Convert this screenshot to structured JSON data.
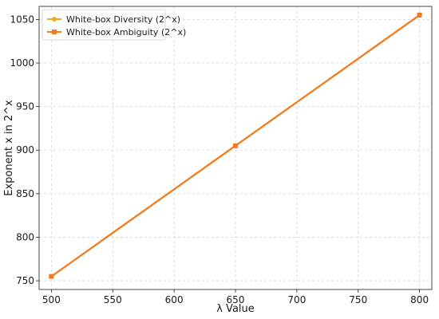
{
  "chart_data": {
    "type": "line",
    "title": "",
    "xlabel": "λ Value",
    "ylabel": "Exponent x in 2^x",
    "x": [
      500,
      650,
      800
    ],
    "xticks": [
      500,
      550,
      600,
      650,
      700,
      750,
      800
    ],
    "yticks": [
      750,
      800,
      850,
      900,
      950,
      1000,
      1050
    ],
    "xlim": [
      490,
      810
    ],
    "ylim": [
      740,
      1065
    ],
    "grid": true,
    "legend_position": "top-left",
    "series": [
      {
        "name": "White-box Diversity (2^x)",
        "values": [
          755,
          905,
          1055
        ],
        "color": "#f5a623",
        "marker": "circle"
      },
      {
        "name": "White-box Ambiguity (2^x)",
        "values": [
          755,
          905,
          1055
        ],
        "color": "#f47a1f",
        "marker": "square"
      }
    ]
  }
}
